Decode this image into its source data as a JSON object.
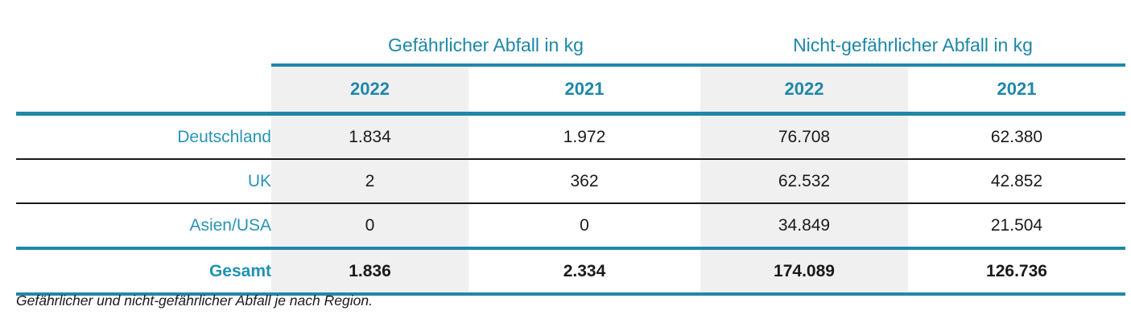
{
  "table": {
    "group_headers": [
      {
        "label": "Gefährlicher Abfall in kg"
      },
      {
        "label": "Nicht-gefährlicher Abfall in kg"
      }
    ],
    "year_headers": [
      "2022",
      "2021",
      "2022",
      "2021"
    ],
    "rows": [
      {
        "region": "Deutschland",
        "values": [
          "1.834",
          "1.972",
          "76.708",
          "62.380"
        ]
      },
      {
        "region": "UK",
        "values": [
          "2",
          "362",
          "62.532",
          "42.852"
        ]
      },
      {
        "region": "Asien/USA",
        "values": [
          "0",
          "0",
          "34.849",
          "21.504"
        ]
      }
    ],
    "total_row": {
      "region": "Gesamt",
      "values": [
        "1.836",
        "2.334",
        "174.089",
        "126.736"
      ]
    }
  },
  "caption": "Gefährlicher und nicht-gefährlicher Abfall je nach Region.",
  "colors": {
    "accent_teal_text": "#1e87a8",
    "accent_teal_line": "#2187a8",
    "region_label_teal": "#2a94b4",
    "shaded_column_bg": "#f0f0f0",
    "body_text": "#1a1a1a",
    "background": "#ffffff"
  }
}
